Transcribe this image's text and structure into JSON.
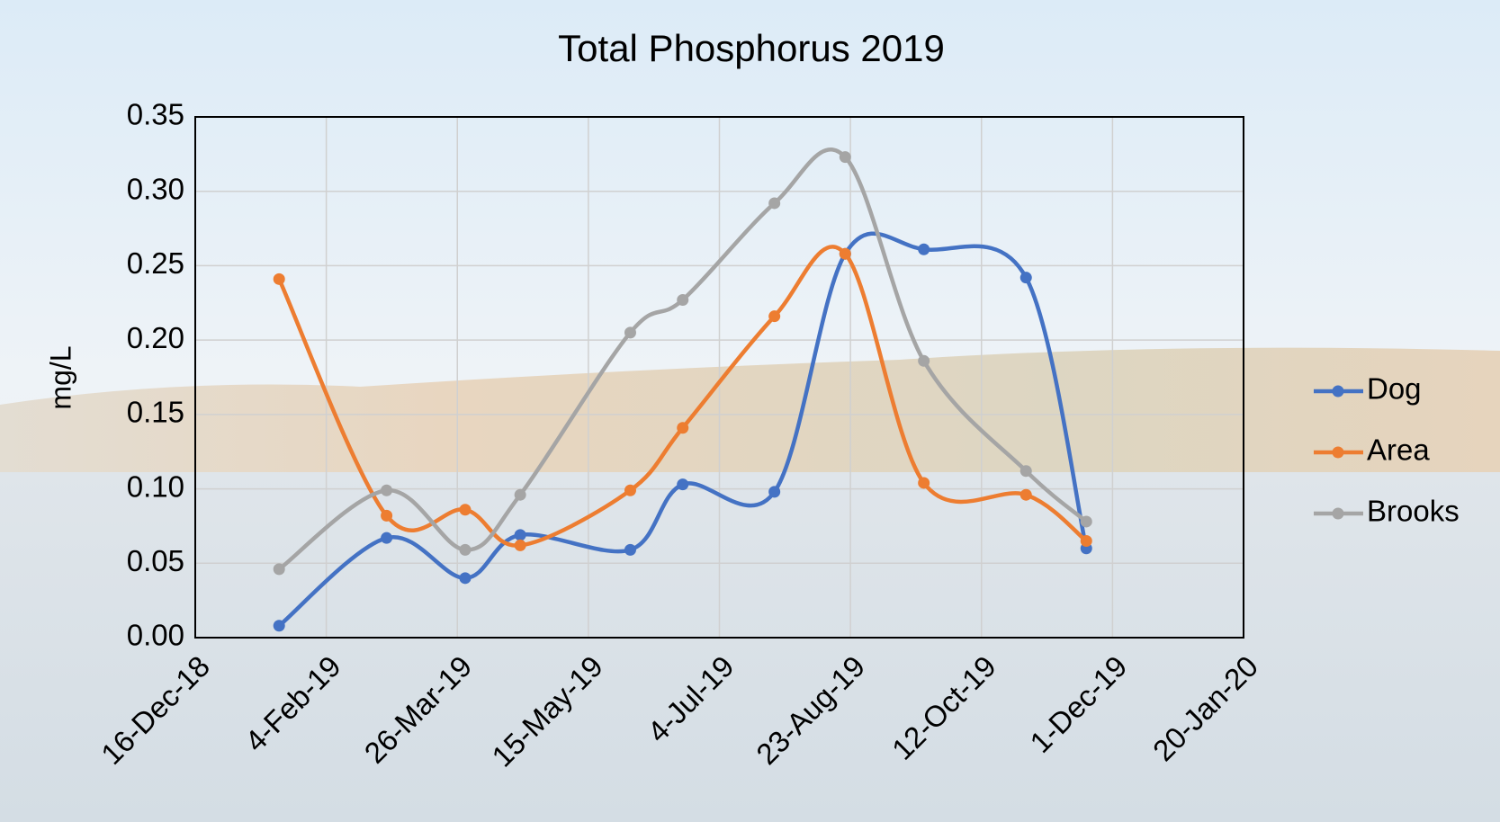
{
  "chart_data": {
    "type": "line",
    "title": "Total Phosphorus 2019",
    "y_label": "mg/L",
    "x": [
      "2019-01-17",
      "2019-02-27",
      "2019-03-29",
      "2019-04-19",
      "2019-05-31",
      "2019-06-20",
      "2019-07-25",
      "2019-08-21",
      "2019-09-20",
      "2019-10-29",
      "2019-11-21"
    ],
    "series": [
      {
        "name": "Dog",
        "color": "#4472c4",
        "values": [
          0.008,
          0.067,
          0.04,
          0.069,
          0.059,
          0.103,
          0.098,
          0.258,
          0.261,
          0.242,
          0.06
        ]
      },
      {
        "name": "Area",
        "color": "#ed7d31",
        "values": [
          0.241,
          0.082,
          0.086,
          0.062,
          0.099,
          0.141,
          0.216,
          0.258,
          0.104,
          0.096,
          0.065
        ]
      },
      {
        "name": "Brooks",
        "color": "#a5a5a5",
        "values": [
          0.046,
          0.099,
          0.059,
          0.096,
          0.205,
          0.227,
          0.292,
          0.323,
          0.186,
          0.112,
          0.078
        ]
      }
    ],
    "xlim": [
      "2018-12-16",
      "2020-01-20"
    ],
    "xticks": [
      {
        "value": "2018-12-16",
        "label": "16-Dec-18"
      },
      {
        "value": "2019-02-04",
        "label": "4-Feb-19"
      },
      {
        "value": "2019-03-26",
        "label": "26-Mar-19"
      },
      {
        "value": "2019-05-15",
        "label": "15-May-19"
      },
      {
        "value": "2019-07-04",
        "label": "4-Jul-19"
      },
      {
        "value": "2019-08-23",
        "label": "23-Aug-19"
      },
      {
        "value": "2019-10-12",
        "label": "12-Oct-19"
      },
      {
        "value": "2019-12-01",
        "label": "1-Dec-19"
      },
      {
        "value": "2020-01-20",
        "label": "20-Jan-20"
      }
    ],
    "ylim": [
      0,
      0.35
    ],
    "yticks": [
      {
        "value": 0,
        "label": "0.00"
      },
      {
        "value": 0.05,
        "label": "0.05"
      },
      {
        "value": 0.1,
        "label": "0.10"
      },
      {
        "value": 0.15,
        "label": "0.15"
      },
      {
        "value": 0.2,
        "label": "0.20"
      },
      {
        "value": 0.25,
        "label": "0.25"
      },
      {
        "value": 0.3,
        "label": "0.30"
      },
      {
        "value": 0.35,
        "label": "0.35"
      }
    ],
    "grid": true,
    "smooth": true,
    "legend": "right"
  }
}
